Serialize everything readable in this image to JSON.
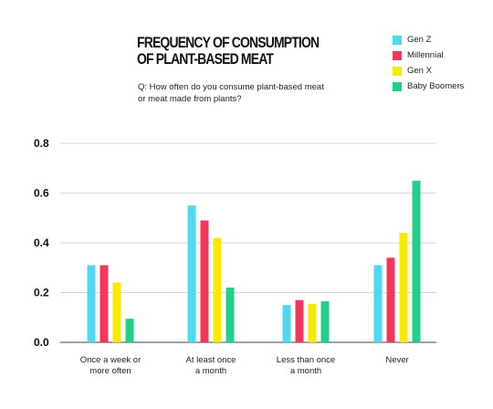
{
  "chart_data": {
    "type": "bar",
    "title_lines": [
      "FREQUENCY OF CONSUMPTION",
      "OF PLANT-BASED MEAT"
    ],
    "subtitle_lines": [
      "Q: How often do you consume plant-based meat",
      "or meat made from plants?"
    ],
    "categories": [
      [
        "Once a week or",
        "more often"
      ],
      [
        "At least once",
        "a month"
      ],
      [
        "Less than once",
        "a month"
      ],
      [
        "Never"
      ]
    ],
    "series": [
      {
        "name": "Gen Z",
        "color": "#4fd8f0",
        "values": [
          0.31,
          0.55,
          0.15,
          0.31
        ]
      },
      {
        "name": "Millennial",
        "color": "#f5365c",
        "values": [
          0.31,
          0.49,
          0.17,
          0.34
        ]
      },
      {
        "name": "Gen X",
        "color": "#f9e900",
        "values": [
          0.24,
          0.42,
          0.155,
          0.44
        ]
      },
      {
        "name": "Baby Boomers",
        "color": "#22d08a",
        "values": [
          0.095,
          0.22,
          0.165,
          0.65
        ]
      }
    ],
    "yticks": [
      "0.0",
      "0.2",
      "0.4",
      "0.6",
      "0.8"
    ],
    "ylim": [
      0,
      0.8
    ],
    "grid": true,
    "legend_position": "top-right"
  }
}
